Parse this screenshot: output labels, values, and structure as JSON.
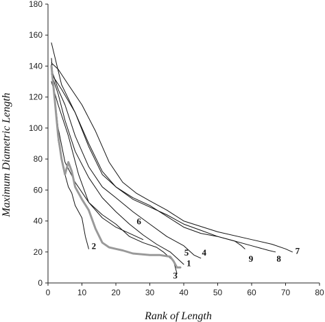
{
  "chart_data": {
    "type": "line",
    "title": "",
    "xlabel": "Rank of Length",
    "ylabel": "Maximum Diametric Length",
    "xlim": [
      0,
      80
    ],
    "ylim": [
      0,
      180
    ],
    "xticks": [
      0,
      10,
      20,
      30,
      40,
      50,
      60,
      70,
      80
    ],
    "yticks": [
      0,
      20,
      40,
      60,
      80,
      100,
      120,
      140,
      160,
      180
    ],
    "grid": false,
    "legend": "none",
    "line_color": "#111111",
    "highlight_color": "#999999",
    "series": [
      {
        "name": "1",
        "highlight": true,
        "x": [
          1,
          2,
          3,
          4,
          5,
          6,
          7,
          8,
          10,
          12,
          14,
          16,
          18,
          20,
          22,
          25,
          30,
          33,
          36,
          37,
          38,
          39
        ],
        "y": [
          140,
          118,
          95,
          80,
          70,
          78,
          72,
          62,
          54,
          47,
          35,
          26,
          23,
          22,
          21,
          19,
          18,
          18,
          17,
          14,
          10,
          10
        ]
      },
      {
        "name": "2",
        "x": [
          1,
          2,
          3,
          4,
          5,
          6,
          7,
          8,
          10,
          11,
          12
        ],
        "y": [
          145,
          120,
          92,
          80,
          70,
          62,
          58,
          50,
          42,
          30,
          22
        ]
      },
      {
        "name": "3",
        "x": [
          1,
          3,
          5,
          8,
          12,
          16,
          20,
          24,
          28,
          32,
          34,
          36,
          37,
          38
        ],
        "y": [
          141,
          100,
          78,
          65,
          52,
          44,
          38,
          30,
          26,
          23,
          20,
          16,
          14,
          6
        ]
      },
      {
        "name": "4",
        "x": [
          1,
          3,
          5,
          8,
          12,
          16,
          20,
          25,
          30,
          35,
          40,
          43,
          45
        ],
        "y": [
          138,
          125,
          115,
          95,
          75,
          62,
          55,
          46,
          38,
          30,
          24,
          18,
          16
        ]
      },
      {
        "name": "5",
        "x": [
          1,
          3,
          5,
          8,
          12,
          16,
          20,
          24,
          28,
          32,
          36,
          38,
          40
        ],
        "y": [
          135,
          122,
          105,
          85,
          68,
          55,
          46,
          38,
          31,
          25,
          20,
          16,
          12
        ]
      },
      {
        "name": "6",
        "x": [
          1,
          3,
          6,
          9,
          12,
          16,
          20,
          24,
          28
        ],
        "y": [
          130,
          115,
          95,
          70,
          52,
          42,
          36,
          32,
          28
        ]
      },
      {
        "name": "7",
        "x": [
          1,
          3,
          6,
          10,
          14,
          18,
          22,
          26,
          30,
          35,
          40,
          50,
          60,
          66,
          70,
          72
        ],
        "y": [
          142,
          138,
          128,
          115,
          98,
          78,
          65,
          58,
          53,
          47,
          40,
          33,
          28,
          25,
          22,
          20
        ]
      },
      {
        "name": "8",
        "x": [
          1,
          4,
          8,
          12,
          16,
          20,
          25,
          30,
          35,
          40,
          45,
          50,
          55,
          60,
          65,
          67
        ],
        "y": [
          135,
          125,
          110,
          90,
          72,
          62,
          54,
          49,
          44,
          38,
          34,
          30,
          27,
          24,
          21,
          20
        ]
      },
      {
        "name": "9",
        "x": [
          1,
          4,
          8,
          12,
          16,
          20,
          25,
          30,
          35,
          40,
          45,
          50,
          55,
          57,
          58
        ],
        "y": [
          155,
          128,
          110,
          88,
          70,
          62,
          55,
          50,
          43,
          36,
          32,
          30,
          27,
          24,
          22
        ]
      }
    ],
    "curve_labels": [
      {
        "text": "1",
        "x": 41.5,
        "y": 13
      },
      {
        "text": "2",
        "x": 13.5,
        "y": 24
      },
      {
        "text": "3",
        "x": 37.5,
        "y": 5
      },
      {
        "text": "4",
        "x": 46.0,
        "y": 20
      },
      {
        "text": "5",
        "x": 40.8,
        "y": 20
      },
      {
        "text": "6",
        "x": 26.8,
        "y": 40
      },
      {
        "text": "7",
        "x": 73.5,
        "y": 21
      },
      {
        "text": "8",
        "x": 68.0,
        "y": 16
      },
      {
        "text": "9",
        "x": 59.8,
        "y": 16
      }
    ]
  }
}
